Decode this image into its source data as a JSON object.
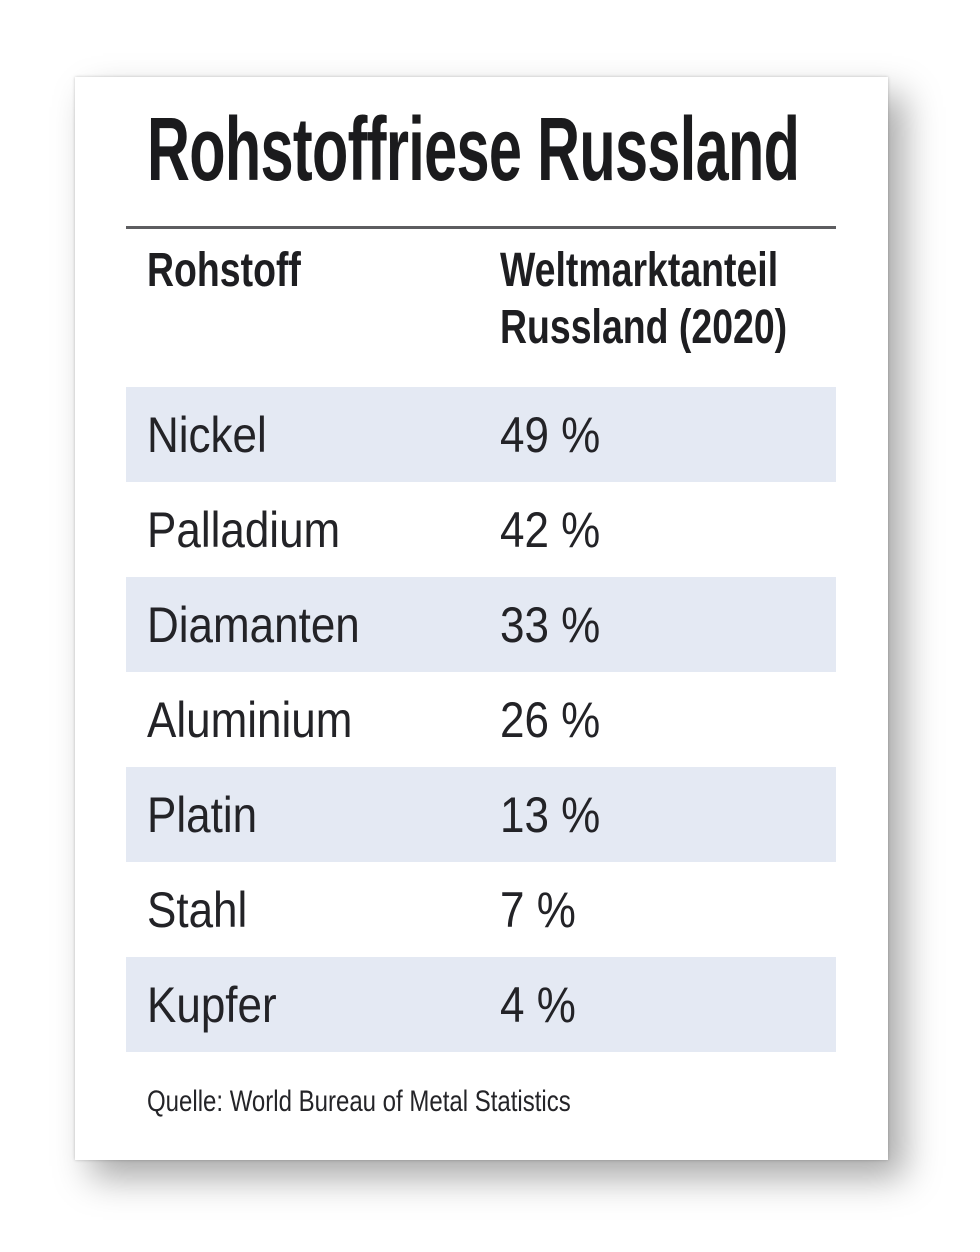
{
  "page": {
    "title": "Rohstoffriese Russland"
  },
  "table": {
    "header": {
      "col1": "Rohstoff",
      "col2_line1": "Weltmarktanteil",
      "col2_line2": "Russland (2020)"
    },
    "rows": [
      {
        "material": "Nickel",
        "share": "49 %"
      },
      {
        "material": "Palladium",
        "share": "42 %"
      },
      {
        "material": "Diamanten",
        "share": "33 %"
      },
      {
        "material": "Aluminium",
        "share": "26 %"
      },
      {
        "material": "Platin",
        "share": "13 %"
      },
      {
        "material": "Stahl",
        "share": "7 %"
      },
      {
        "material": "Kupfer",
        "share": "4 %"
      }
    ]
  },
  "source_line": "Quelle: World Bureau of Metal Statistics",
  "colors": {
    "row_highlight": "#e4e9f3",
    "text": "#232327",
    "title_text": "#1b1b1d",
    "rule": "#5d5d60",
    "card_background": "#ffffff"
  },
  "chart_data": {
    "type": "table",
    "title": "Rohstoffriese Russland",
    "columns": [
      "Rohstoff",
      "Weltmarktanteil Russland (2020)"
    ],
    "categories": [
      "Nickel",
      "Palladium",
      "Diamanten",
      "Aluminium",
      "Platin",
      "Stahl",
      "Kupfer"
    ],
    "values": [
      49,
      42,
      33,
      26,
      13,
      7,
      4
    ],
    "unit": "%",
    "source": "Quelle: World Bureau of Metal Statistics"
  }
}
